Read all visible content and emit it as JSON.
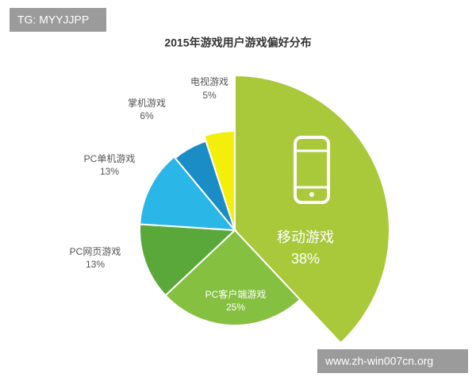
{
  "chart_data": {
    "type": "pie",
    "title": "2015年游戏用户游戏偏好分布",
    "categories": [
      "移动游戏",
      "PC客户端游戏",
      "PC网页游戏",
      "PC单机游戏",
      "掌机游戏",
      "电视游戏"
    ],
    "values": [
      38,
      25,
      13,
      13,
      6,
      5
    ],
    "value_labels": [
      "38%",
      "25%",
      "13%",
      "13%",
      "6%",
      "5%"
    ],
    "colors": [
      "#a9c93b",
      "#86c041",
      "#5aa83a",
      "#2bb6e8",
      "#1a8cc6",
      "#f3ef0a"
    ],
    "watermarks": [
      "TG: MYYJJPP",
      "www.zh-win007cn.org"
    ]
  }
}
